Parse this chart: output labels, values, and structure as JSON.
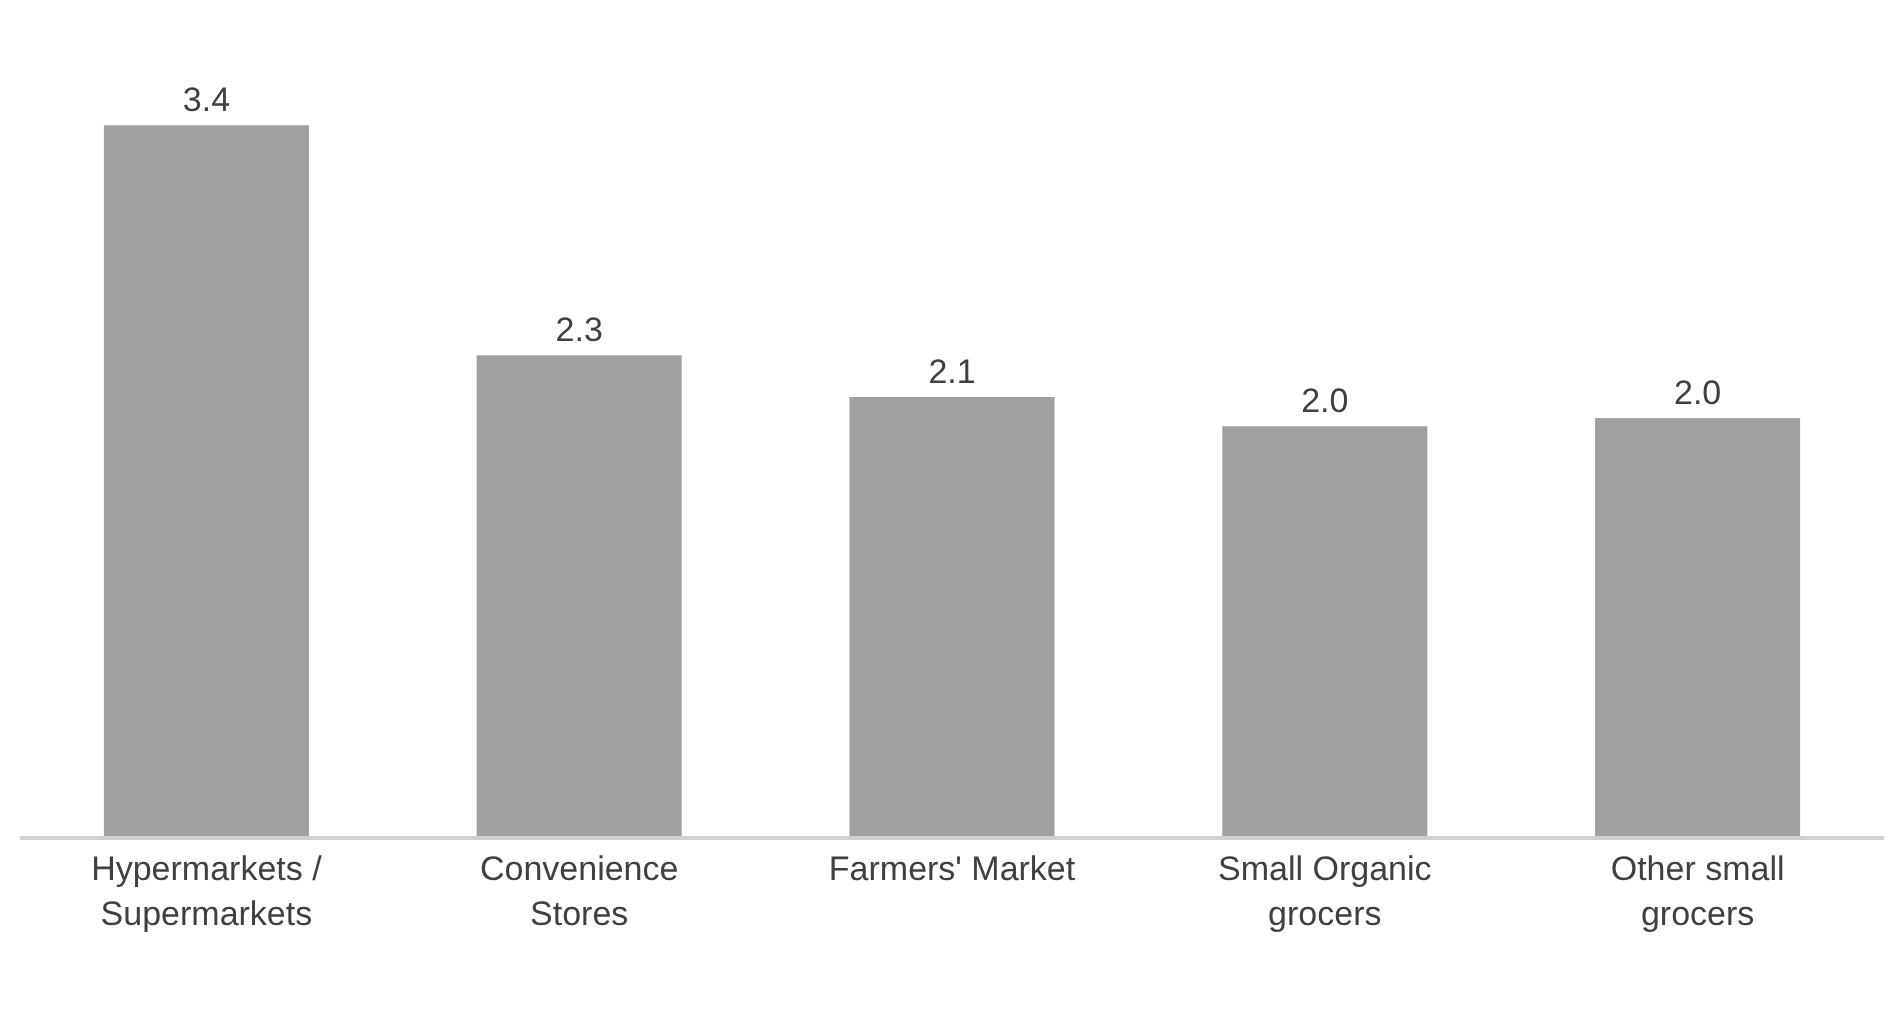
{
  "chart_data": {
    "type": "bar",
    "categories": [
      "Hypermarkets / Supermarkets",
      "Convenience Stores",
      "Farmers' Market",
      "Small Organic grocers",
      "Other small grocers"
    ],
    "values": [
      3.4,
      2.3,
      2.1,
      1.96,
      2.0
    ],
    "value_labels": [
      "3.4",
      "2.3",
      "2.1",
      "2.0",
      "2.0"
    ],
    "color": "#a0a0a0"
  }
}
